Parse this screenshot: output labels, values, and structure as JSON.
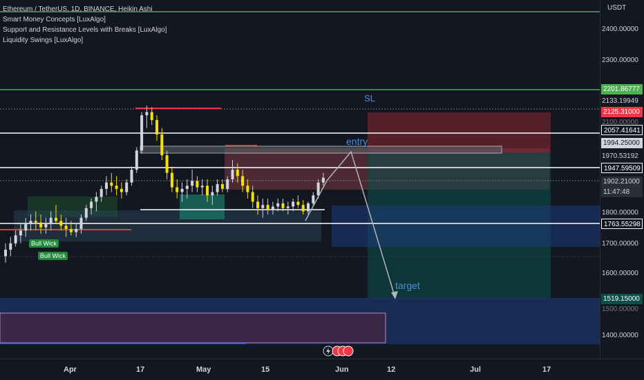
{
  "legend": {
    "title": "Ethereum / TetherUS, 1D, BINANCE, Heikin Ashi",
    "ind1": "Smart Money Concepts [LuxAlgo]",
    "ind2": " Support and Resistance Levels with Breaks [LuxAlgo]",
    "ind3": "Liquidity Swings [LuxAlgo]"
  },
  "axis": {
    "currency": "USDT",
    "price_labels": [
      "2400.00000",
      "2300.00000",
      "2133.19949",
      "2100.00000",
      "1970.53192",
      "1800.00000",
      "1700.00000",
      "1600.00000",
      "1500.00000",
      "1400.00000"
    ],
    "tags": {
      "t2201": "2201.86777",
      "t2125": "2125.31000",
      "t2057": "2057.41641",
      "t1994": "1994.25000",
      "t1947": "1947.59509",
      "t1902": "1902.21000",
      "t1902_time": "11:47:48",
      "t1763": "1763.55298",
      "t1519": "1519.15000"
    },
    "time_labels": [
      "Apr",
      "17",
      "May",
      "15",
      "Jun",
      "12",
      "Jul",
      "17"
    ]
  },
  "annotations": {
    "sl": "SL",
    "entry": "entry",
    "target": "target",
    "bull_wick_1": "Bull Wick",
    "bull_wick_2": "Bull Wick"
  },
  "colors": {
    "background": "#131722",
    "bull_candle": "#d1d4dc",
    "bear_candle": "#f5e000",
    "green_line": "#4caf50",
    "red_zone": "#8b2a33",
    "blue_zone": "#1e3a78",
    "sl_tag": "#f23645",
    "tp_tag": "#0b4f48"
  },
  "chart_data": {
    "type": "candlestick",
    "series_style": "Heikin Ashi",
    "ohlc": [
      [
        1660,
        1700,
        1640,
        1680
      ],
      [
        1680,
        1720,
        1660,
        1700
      ],
      [
        1700,
        1740,
        1690,
        1725
      ],
      [
        1725,
        1760,
        1700,
        1740
      ],
      [
        1740,
        1780,
        1720,
        1760
      ],
      [
        1760,
        1790,
        1740,
        1770
      ],
      [
        1770,
        1800,
        1740,
        1765
      ],
      [
        1765,
        1790,
        1730,
        1750
      ],
      [
        1750,
        1780,
        1730,
        1760
      ],
      [
        1760,
        1800,
        1740,
        1780
      ],
      [
        1780,
        1820,
        1760,
        1770
      ],
      [
        1770,
        1790,
        1740,
        1755
      ],
      [
        1755,
        1780,
        1720,
        1745
      ],
      [
        1745,
        1770,
        1725,
        1735
      ],
      [
        1735,
        1760,
        1720,
        1745
      ],
      [
        1745,
        1790,
        1730,
        1780
      ],
      [
        1780,
        1820,
        1770,
        1810
      ],
      [
        1810,
        1840,
        1790,
        1830
      ],
      [
        1830,
        1860,
        1800,
        1845
      ],
      [
        1845,
        1880,
        1830,
        1870
      ],
      [
        1870,
        1910,
        1850,
        1890
      ],
      [
        1890,
        1920,
        1860,
        1880
      ],
      [
        1880,
        1910,
        1850,
        1870
      ],
      [
        1870,
        1890,
        1840,
        1860
      ],
      [
        1860,
        1900,
        1850,
        1890
      ],
      [
        1890,
        1940,
        1880,
        1930
      ],
      [
        1930,
        2000,
        1920,
        1990
      ],
      [
        1990,
        2110,
        1980,
        2100
      ],
      [
        2100,
        2130,
        2060,
        2110
      ],
      [
        2110,
        2125,
        2070,
        2085
      ],
      [
        2085,
        2100,
        2020,
        2040
      ],
      [
        2040,
        2060,
        1960,
        1975
      ],
      [
        1975,
        1990,
        1900,
        1920
      ],
      [
        1920,
        1940,
        1860,
        1875
      ],
      [
        1875,
        1900,
        1840,
        1860
      ],
      [
        1860,
        1890,
        1830,
        1870
      ],
      [
        1870,
        1900,
        1840,
        1880
      ],
      [
        1880,
        1930,
        1860,
        1895
      ],
      [
        1895,
        1910,
        1860,
        1875
      ],
      [
        1875,
        1900,
        1850,
        1880
      ],
      [
        1880,
        1900,
        1830,
        1850
      ],
      [
        1850,
        1880,
        1820,
        1860
      ],
      [
        1860,
        1900,
        1850,
        1885
      ],
      [
        1885,
        1900,
        1860,
        1870
      ],
      [
        1870,
        1910,
        1860,
        1900
      ],
      [
        1900,
        1960,
        1890,
        1930
      ],
      [
        1930,
        1950,
        1890,
        1910
      ],
      [
        1910,
        1930,
        1860,
        1880
      ],
      [
        1880,
        1900,
        1840,
        1860
      ],
      [
        1860,
        1880,
        1810,
        1830
      ],
      [
        1830,
        1850,
        1790,
        1810
      ],
      [
        1810,
        1840,
        1780,
        1820
      ],
      [
        1820,
        1840,
        1790,
        1805
      ],
      [
        1805,
        1830,
        1790,
        1815
      ],
      [
        1815,
        1840,
        1800,
        1825
      ],
      [
        1825,
        1840,
        1800,
        1810
      ],
      [
        1810,
        1830,
        1790,
        1815
      ],
      [
        1815,
        1840,
        1800,
        1830
      ],
      [
        1830,
        1850,
        1810,
        1820
      ],
      [
        1820,
        1835,
        1790,
        1800
      ],
      [
        1800,
        1830,
        1790,
        1825
      ],
      [
        1825,
        1860,
        1815,
        1850
      ],
      [
        1850,
        1900,
        1840,
        1890
      ],
      [
        1890,
        1920,
        1880,
        1905
      ]
    ],
    "price_range": [
      1340,
      2460
    ],
    "levels": {
      "sl": 2125.31,
      "entry": 1994.25,
      "target": 1519.15,
      "green_top": 2201.86777,
      "res_1": 2057.41641,
      "sup_1": 1763.55298
    }
  }
}
